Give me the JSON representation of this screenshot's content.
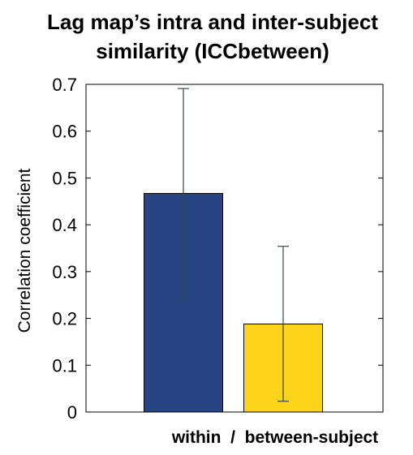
{
  "chart_data": {
    "type": "bar",
    "title": [
      "Lag map’s intra and inter-subject",
      "similarity (ICCbetween)"
    ],
    "xlabel": "within  /  between-subject",
    "ylabel": "Correlation coefficient",
    "ylim": [
      0,
      0.7
    ],
    "yticks": [
      "0",
      "0.1",
      "0.2",
      "0.3",
      "0.4",
      "0.5",
      "0.6",
      "0.7"
    ],
    "grid": false,
    "legend": "none",
    "bars": [
      {
        "value": 0.467,
        "err_low": 0.243,
        "err_high": 0.691,
        "color": "#284583"
      },
      {
        "value": 0.188,
        "err_low": 0.023,
        "err_high": 0.354,
        "color": "#fdd41a"
      }
    ],
    "errorbar_color": "#2f4b45"
  }
}
